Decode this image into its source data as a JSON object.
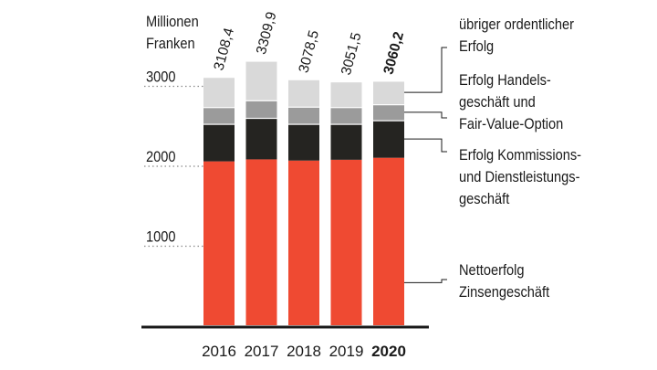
{
  "chart_data": {
    "type": "bar",
    "stacked": true,
    "unit_label_lines": [
      "Millionen",
      "Franken"
    ],
    "categories": [
      "2016",
      "2017",
      "2018",
      "2019",
      "2020"
    ],
    "highlighted_category": "2020",
    "totals": [
      "3108,4",
      "3309,9",
      "3078,5",
      "3051,5",
      "3060,2"
    ],
    "series": [
      {
        "name": "Nettoerfolg Zinsengeschäft",
        "label_lines": [
          "Nettoerfolg",
          "Zinsengeschäft"
        ],
        "color": "#ef4a32",
        "values": [
          2050,
          2075,
          2060,
          2070,
          2095
        ]
      },
      {
        "name": "Erfolg Kommissions- und Dienstleistungsgeschäft",
        "label_lines": [
          "Erfolg Kommissions-",
          "und Dienstleistungs-",
          "geschäft"
        ],
        "color": "#252421",
        "values": [
          470,
          520,
          460,
          450,
          470
        ]
      },
      {
        "name": "Erfolg Handelsgeschäft und Fair-Value-Option",
        "label_lines": [
          "Erfolg Handels-",
          "geschäft und",
          "Fair-Value-Option"
        ],
        "color": "#9b9b9b",
        "values": [
          210,
          220,
          215,
          210,
          200
        ]
      },
      {
        "name": "übriger ordentlicher Erfolg",
        "label_lines": [
          "übriger ordentlicher",
          "Erfolg"
        ],
        "color": "#d9d9d9",
        "values": [
          378.4,
          494.9,
          343.5,
          321.5,
          295.2
        ]
      }
    ],
    "y_ticks": [
      1000,
      2000,
      3000
    ],
    "ylim": [
      0,
      3600
    ],
    "grid": "dotted-left"
  }
}
